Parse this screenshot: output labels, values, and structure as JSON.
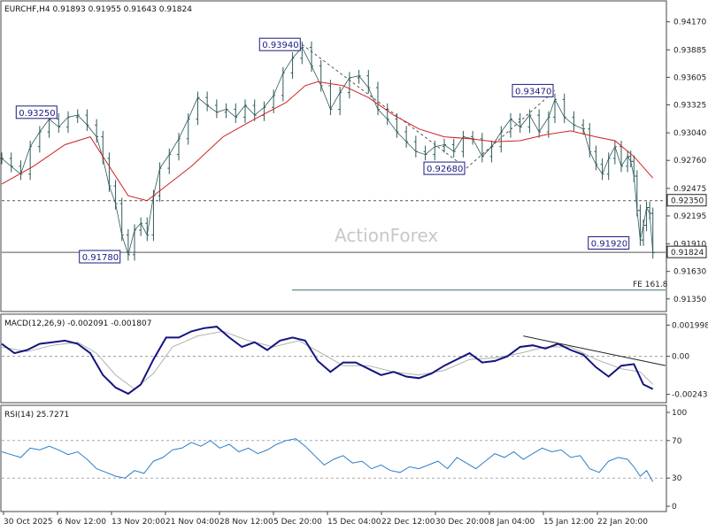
{
  "chart_data": [
    {
      "type": "line",
      "panel": "price",
      "header": "EURCHF,H4  0.91893 0.91955 0.91643 0.91824",
      "watermark": "ActionForex",
      "ylim": [
        0.9133,
        0.9432
      ],
      "y_ticks": [
        "0.94170",
        "0.93885",
        "0.93605",
        "0.93325",
        "0.93040",
        "0.92760",
        "0.92475",
        "0.92195",
        "0.91910",
        "0.91630",
        "0.91350"
      ],
      "x_ticks": [
        "30 Oct 2025",
        "6 Nov 12:00",
        "13 Nov 20:00",
        "21 Nov 04:00",
        "28 Nov 12:00",
        "5 Dec 20:00",
        "15 Dec 04:00",
        "22 Dec 12:00",
        "30 Dec 20:00",
        "8 Jan 04:00",
        "15 Jan 12:00",
        "22 Jan 20:00"
      ],
      "x_range": [
        0,
        210
      ],
      "close": [
        [
          0,
          0.9278
        ],
        [
          3,
          0.927
        ],
        [
          6,
          0.9262
        ],
        [
          9,
          0.929
        ],
        [
          12,
          0.9305
        ],
        [
          15,
          0.9318
        ],
        [
          18,
          0.931
        ],
        [
          21,
          0.932
        ],
        [
          24,
          0.9322
        ],
        [
          27,
          0.9312
        ],
        [
          30,
          0.93
        ],
        [
          32,
          0.9278
        ],
        [
          34,
          0.925
        ],
        [
          36,
          0.9232
        ],
        [
          38,
          0.92
        ],
        [
          40,
          0.918
        ],
        [
          42,
          0.9205
        ],
        [
          44,
          0.9212
        ],
        [
          46,
          0.92
        ],
        [
          48,
          0.924
        ],
        [
          50,
          0.9268
        ],
        [
          53,
          0.9282
        ],
        [
          56,
          0.9298
        ],
        [
          59,
          0.9318
        ],
        [
          62,
          0.934
        ],
        [
          65,
          0.9332
        ],
        [
          68,
          0.9325
        ],
        [
          71,
          0.9328
        ],
        [
          74,
          0.932
        ],
        [
          77,
          0.9332
        ],
        [
          80,
          0.9322
        ],
        [
          83,
          0.933
        ],
        [
          86,
          0.9342
        ],
        [
          89,
          0.9365
        ],
        [
          92,
          0.938
        ],
        [
          95,
          0.9391
        ],
        [
          98,
          0.9372
        ],
        [
          101,
          0.9352
        ],
        [
          104,
          0.9328
        ],
        [
          107,
          0.9345
        ],
        [
          110,
          0.936
        ],
        [
          113,
          0.9362
        ],
        [
          116,
          0.935
        ],
        [
          119,
          0.9328
        ],
        [
          122,
          0.9318
        ],
        [
          125,
          0.9305
        ],
        [
          128,
          0.9295
        ],
        [
          131,
          0.9285
        ],
        [
          134,
          0.9282
        ],
        [
          137,
          0.929
        ],
        [
          140,
          0.9292
        ],
        [
          143,
          0.9285
        ],
        [
          146,
          0.93
        ],
        [
          149,
          0.9298
        ],
        [
          152,
          0.928
        ],
        [
          155,
          0.929
        ],
        [
          158,
          0.9305
        ],
        [
          161,
          0.9318
        ],
        [
          164,
          0.931
        ],
        [
          167,
          0.9322
        ],
        [
          170,
          0.9305
        ],
        [
          173,
          0.932
        ],
        [
          175,
          0.9338
        ],
        [
          178,
          0.932
        ],
        [
          181,
          0.9312
        ],
        [
          184,
          0.9308
        ],
        [
          186,
          0.9285
        ],
        [
          188,
          0.9272
        ],
        [
          190,
          0.9262
        ],
        [
          192,
          0.9278
        ],
        [
          194,
          0.929
        ],
        [
          196,
          0.927
        ],
        [
          198,
          0.928
        ],
        [
          199,
          0.9275
        ],
        [
          200,
          0.926
        ],
        [
          201,
          0.9225
        ],
        [
          202,
          0.9195
        ],
        [
          203,
          0.921
        ],
        [
          204,
          0.9228
        ],
        [
          205,
          0.9222
        ],
        [
          206,
          0.9182
        ]
      ],
      "ma": [
        [
          0,
          0.9252
        ],
        [
          10,
          0.927
        ],
        [
          20,
          0.9292
        ],
        [
          28,
          0.93
        ],
        [
          34,
          0.927
        ],
        [
          40,
          0.924
        ],
        [
          46,
          0.9235
        ],
        [
          52,
          0.925
        ],
        [
          60,
          0.927
        ],
        [
          70,
          0.93
        ],
        [
          80,
          0.9318
        ],
        [
          90,
          0.9335
        ],
        [
          96,
          0.9352
        ],
        [
          100,
          0.9356
        ],
        [
          108,
          0.9352
        ],
        [
          116,
          0.934
        ],
        [
          124,
          0.9322
        ],
        [
          132,
          0.9308
        ],
        [
          140,
          0.93
        ],
        [
          148,
          0.9298
        ],
        [
          156,
          0.9295
        ],
        [
          164,
          0.9296
        ],
        [
          172,
          0.9302
        ],
        [
          180,
          0.9306
        ],
        [
          188,
          0.93
        ],
        [
          194,
          0.9296
        ],
        [
          200,
          0.928
        ],
        [
          206,
          0.9258
        ]
      ],
      "h_lines": [
        {
          "value": 0.9235,
          "style": "dashed"
        },
        {
          "value": 0.91824,
          "style": "solid"
        },
        {
          "value": 0.9144,
          "style": "solid",
          "label": "FE 161.8"
        }
      ],
      "price_tags": [
        {
          "value": "0.92350",
          "y": 0.9235
        },
        {
          "value": "0.91824",
          "y": 0.91824
        }
      ],
      "callouts": [
        {
          "text": "0.93940",
          "x": 95,
          "y": 0.9394
        },
        {
          "text": "0.93250",
          "x": 18,
          "y": 0.9325
        },
        {
          "text": "0.93470",
          "x": 175,
          "y": 0.9347
        },
        {
          "text": "0.92680",
          "x": 147,
          "y": 0.9268
        },
        {
          "text": "0.91780",
          "x": 38,
          "y": 0.9178
        },
        {
          "text": "0.91920",
          "x": 199,
          "y": 0.9192
        }
      ],
      "trendlines": [
        {
          "from": [
            95,
            0.9394
          ],
          "to": [
            147,
            0.9268
          ]
        },
        {
          "from": [
            147,
            0.9268
          ],
          "to": [
            175,
            0.9347
          ]
        }
      ]
    },
    {
      "type": "line",
      "panel": "macd",
      "header": "MACD(12,26,9) -0.002091 -0.001807",
      "ylim": [
        -0.0028,
        0.0023
      ],
      "y_ticks": [
        "0.001998",
        "0.00",
        "-0.002434"
      ],
      "macd": [
        [
          0,
          0.0008
        ],
        [
          4,
          0.0002
        ],
        [
          8,
          0.0004
        ],
        [
          12,
          0.0008
        ],
        [
          16,
          0.0009
        ],
        [
          20,
          0.001
        ],
        [
          24,
          0.0008
        ],
        [
          28,
          0.0002
        ],
        [
          32,
          -0.0012
        ],
        [
          36,
          -0.002
        ],
        [
          40,
          -0.0024
        ],
        [
          44,
          -0.0018
        ],
        [
          48,
          -0.0002
        ],
        [
          52,
          0.0012
        ],
        [
          56,
          0.0012
        ],
        [
          60,
          0.0016
        ],
        [
          64,
          0.0018
        ],
        [
          68,
          0.0019
        ],
        [
          72,
          0.0012
        ],
        [
          76,
          0.0006
        ],
        [
          80,
          0.0009
        ],
        [
          84,
          0.0004
        ],
        [
          88,
          0.001
        ],
        [
          92,
          0.0012
        ],
        [
          96,
          0.001
        ],
        [
          100,
          -0.0003
        ],
        [
          104,
          -0.001
        ],
        [
          108,
          -0.0004
        ],
        [
          112,
          -0.0004
        ],
        [
          116,
          -0.0008
        ],
        [
          120,
          -0.0012
        ],
        [
          124,
          -0.001
        ],
        [
          128,
          -0.0013
        ],
        [
          132,
          -0.0014
        ],
        [
          136,
          -0.0011
        ],
        [
          140,
          -0.0006
        ],
        [
          144,
          -0.0002
        ],
        [
          148,
          0.0002
        ],
        [
          152,
          -0.0004
        ],
        [
          156,
          -0.0003
        ],
        [
          160,
          0.0
        ],
        [
          164,
          0.0006
        ],
        [
          168,
          0.0007
        ],
        [
          172,
          0.0005
        ],
        [
          176,
          0.0008
        ],
        [
          180,
          0.0004
        ],
        [
          184,
          0.0001
        ],
        [
          188,
          -0.0007
        ],
        [
          192,
          -0.0013
        ],
        [
          196,
          -0.0006
        ],
        [
          200,
          -0.0005
        ],
        [
          203,
          -0.0018
        ],
        [
          206,
          -0.0021
        ]
      ],
      "signal": [
        [
          0,
          0.0006
        ],
        [
          8,
          0.0003
        ],
        [
          16,
          0.0007
        ],
        [
          24,
          0.0009
        ],
        [
          30,
          0.0002
        ],
        [
          36,
          -0.0012
        ],
        [
          42,
          -0.0021
        ],
        [
          48,
          -0.0011
        ],
        [
          54,
          0.0006
        ],
        [
          62,
          0.0013
        ],
        [
          70,
          0.0016
        ],
        [
          78,
          0.001
        ],
        [
          86,
          0.0006
        ],
        [
          94,
          0.001
        ],
        [
          102,
          0.0001
        ],
        [
          108,
          -0.0006
        ],
        [
          116,
          -0.0006
        ],
        [
          124,
          -0.001
        ],
        [
          132,
          -0.0012
        ],
        [
          140,
          -0.0009
        ],
        [
          148,
          -0.0002
        ],
        [
          156,
          -0.0001
        ],
        [
          164,
          0.0002
        ],
        [
          172,
          0.0006
        ],
        [
          180,
          0.0006
        ],
        [
          188,
          -0.0002
        ],
        [
          196,
          -0.0008
        ],
        [
          202,
          -0.001
        ],
        [
          206,
          -0.0018
        ]
      ],
      "trendline": {
        "from": [
          165,
          0.0013
        ],
        "to": [
          210,
          -0.0006
        ]
      }
    },
    {
      "type": "line",
      "panel": "rsi",
      "header": "RSI(14) 25.7271",
      "ylim": [
        0,
        100
      ],
      "y_ticks": [
        "100",
        "70",
        "30",
        "0"
      ],
      "levels": [
        70,
        30
      ],
      "rsi": [
        [
          0,
          58
        ],
        [
          3,
          55
        ],
        [
          6,
          52
        ],
        [
          9,
          62
        ],
        [
          12,
          60
        ],
        [
          15,
          64
        ],
        [
          18,
          60
        ],
        [
          21,
          55
        ],
        [
          24,
          58
        ],
        [
          27,
          50
        ],
        [
          30,
          40
        ],
        [
          33,
          36
        ],
        [
          36,
          32
        ],
        [
          39,
          30
        ],
        [
          42,
          38
        ],
        [
          45,
          35
        ],
        [
          48,
          48
        ],
        [
          51,
          52
        ],
        [
          54,
          60
        ],
        [
          57,
          62
        ],
        [
          60,
          68
        ],
        [
          63,
          64
        ],
        [
          66,
          70
        ],
        [
          69,
          62
        ],
        [
          72,
          66
        ],
        [
          75,
          58
        ],
        [
          78,
          62
        ],
        [
          81,
          56
        ],
        [
          84,
          60
        ],
        [
          87,
          66
        ],
        [
          90,
          70
        ],
        [
          93,
          72
        ],
        [
          96,
          64
        ],
        [
          99,
          54
        ],
        [
          102,
          44
        ],
        [
          105,
          50
        ],
        [
          108,
          54
        ],
        [
          111,
          46
        ],
        [
          114,
          48
        ],
        [
          117,
          40
        ],
        [
          120,
          44
        ],
        [
          123,
          38
        ],
        [
          126,
          36
        ],
        [
          129,
          42
        ],
        [
          132,
          40
        ],
        [
          135,
          44
        ],
        [
          138,
          48
        ],
        [
          141,
          40
        ],
        [
          144,
          52
        ],
        [
          147,
          46
        ],
        [
          150,
          40
        ],
        [
          153,
          48
        ],
        [
          156,
          56
        ],
        [
          159,
          52
        ],
        [
          162,
          58
        ],
        [
          165,
          50
        ],
        [
          168,
          56
        ],
        [
          171,
          62
        ],
        [
          174,
          58
        ],
        [
          177,
          60
        ],
        [
          180,
          52
        ],
        [
          183,
          54
        ],
        [
          186,
          40
        ],
        [
          189,
          36
        ],
        [
          192,
          48
        ],
        [
          195,
          52
        ],
        [
          198,
          50
        ],
        [
          200,
          42
        ],
        [
          202,
          32
        ],
        [
          204,
          38
        ],
        [
          206,
          26
        ]
      ]
    }
  ]
}
